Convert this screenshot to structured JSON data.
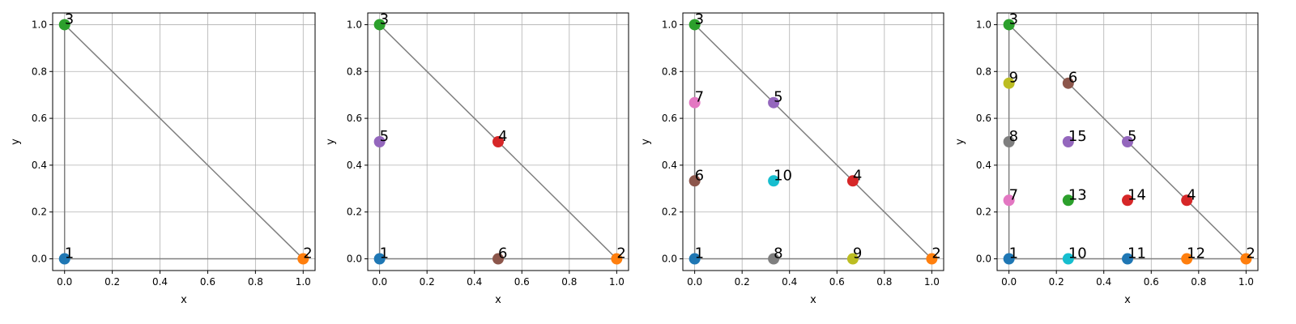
{
  "chart_data": [
    {
      "type": "scatter",
      "xlabel": "x",
      "ylabel": "y",
      "xlim": [
        -0.05,
        1.05
      ],
      "ylim": [
        -0.05,
        1.05
      ],
      "xticks": [
        "0.0",
        "0.2",
        "0.4",
        "0.6",
        "0.8",
        "1.0"
      ],
      "yticks": [
        "0.0",
        "0.2",
        "0.4",
        "0.6",
        "0.8",
        "1.0"
      ],
      "grid": true,
      "triangle": [
        [
          0,
          0
        ],
        [
          1,
          0
        ],
        [
          0,
          1
        ]
      ],
      "points": [
        {
          "label": "1",
          "x": 0,
          "y": 0,
          "color": "#1f77b4"
        },
        {
          "label": "2",
          "x": 1,
          "y": 0,
          "color": "#ff7f0e"
        },
        {
          "label": "3",
          "x": 0,
          "y": 1,
          "color": "#2ca02c"
        }
      ]
    },
    {
      "type": "scatter",
      "xlabel": "x",
      "ylabel": "y",
      "xlim": [
        -0.05,
        1.05
      ],
      "ylim": [
        -0.05,
        1.05
      ],
      "xticks": [
        "0.0",
        "0.2",
        "0.4",
        "0.6",
        "0.8",
        "1.0"
      ],
      "yticks": [
        "0.0",
        "0.2",
        "0.4",
        "0.6",
        "0.8",
        "1.0"
      ],
      "grid": true,
      "triangle": [
        [
          0,
          0
        ],
        [
          1,
          0
        ],
        [
          0,
          1
        ]
      ],
      "points": [
        {
          "label": "1",
          "x": 0,
          "y": 0,
          "color": "#1f77b4"
        },
        {
          "label": "2",
          "x": 1,
          "y": 0,
          "color": "#ff7f0e"
        },
        {
          "label": "3",
          "x": 0,
          "y": 1,
          "color": "#2ca02c"
        },
        {
          "label": "4",
          "x": 0.5,
          "y": 0.5,
          "color": "#d62728"
        },
        {
          "label": "5",
          "x": 0,
          "y": 0.5,
          "color": "#9467bd"
        },
        {
          "label": "6",
          "x": 0.5,
          "y": 0,
          "color": "#8c564b"
        }
      ]
    },
    {
      "type": "scatter",
      "xlabel": "x",
      "ylabel": "y",
      "xlim": [
        -0.05,
        1.05
      ],
      "ylim": [
        -0.05,
        1.05
      ],
      "xticks": [
        "0.0",
        "0.2",
        "0.4",
        "0.6",
        "0.8",
        "1.0"
      ],
      "yticks": [
        "0.0",
        "0.2",
        "0.4",
        "0.6",
        "0.8",
        "1.0"
      ],
      "grid": true,
      "triangle": [
        [
          0,
          0
        ],
        [
          1,
          0
        ],
        [
          0,
          1
        ]
      ],
      "points": [
        {
          "label": "1",
          "x": 0,
          "y": 0,
          "color": "#1f77b4"
        },
        {
          "label": "2",
          "x": 1,
          "y": 0,
          "color": "#ff7f0e"
        },
        {
          "label": "3",
          "x": 0,
          "y": 1,
          "color": "#2ca02c"
        },
        {
          "label": "4",
          "x": 0.667,
          "y": 0.333,
          "color": "#d62728"
        },
        {
          "label": "5",
          "x": 0.333,
          "y": 0.667,
          "color": "#9467bd"
        },
        {
          "label": "6",
          "x": 0,
          "y": 0.333,
          "color": "#8c564b"
        },
        {
          "label": "7",
          "x": 0,
          "y": 0.667,
          "color": "#e377c2"
        },
        {
          "label": "8",
          "x": 0.333,
          "y": 0,
          "color": "#7f7f7f"
        },
        {
          "label": "9",
          "x": 0.667,
          "y": 0,
          "color": "#bcbd22"
        },
        {
          "label": "10",
          "x": 0.333,
          "y": 0.333,
          "color": "#17becf"
        }
      ]
    },
    {
      "type": "scatter",
      "xlabel": "x",
      "ylabel": "y",
      "xlim": [
        -0.05,
        1.05
      ],
      "ylim": [
        -0.05,
        1.05
      ],
      "xticks": [
        "0.0",
        "0.2",
        "0.4",
        "0.6",
        "0.8",
        "1.0"
      ],
      "yticks": [
        "0.0",
        "0.2",
        "0.4",
        "0.6",
        "0.8",
        "1.0"
      ],
      "grid": true,
      "triangle": [
        [
          0,
          0
        ],
        [
          1,
          0
        ],
        [
          0,
          1
        ]
      ],
      "points": [
        {
          "label": "1",
          "x": 0,
          "y": 0,
          "color": "#1f77b4"
        },
        {
          "label": "2",
          "x": 1,
          "y": 0,
          "color": "#ff7f0e"
        },
        {
          "label": "3",
          "x": 0,
          "y": 1,
          "color": "#2ca02c"
        },
        {
          "label": "4",
          "x": 0.75,
          "y": 0.25,
          "color": "#d62728"
        },
        {
          "label": "5",
          "x": 0.5,
          "y": 0.5,
          "color": "#9467bd"
        },
        {
          "label": "6",
          "x": 0.25,
          "y": 0.75,
          "color": "#8c564b"
        },
        {
          "label": "7",
          "x": 0,
          "y": 0.25,
          "color": "#e377c2"
        },
        {
          "label": "8",
          "x": 0,
          "y": 0.5,
          "color": "#7f7f7f"
        },
        {
          "label": "9",
          "x": 0,
          "y": 0.75,
          "color": "#bcbd22"
        },
        {
          "label": "10",
          "x": 0.25,
          "y": 0,
          "color": "#17becf"
        },
        {
          "label": "11",
          "x": 0.5,
          "y": 0,
          "color": "#1f77b4"
        },
        {
          "label": "12",
          "x": 0.75,
          "y": 0,
          "color": "#ff7f0e"
        },
        {
          "label": "13",
          "x": 0.25,
          "y": 0.25,
          "color": "#2ca02c"
        },
        {
          "label": "14",
          "x": 0.5,
          "y": 0.25,
          "color": "#d62728"
        },
        {
          "label": "15",
          "x": 0.25,
          "y": 0.5,
          "color": "#9467bd"
        }
      ]
    }
  ]
}
